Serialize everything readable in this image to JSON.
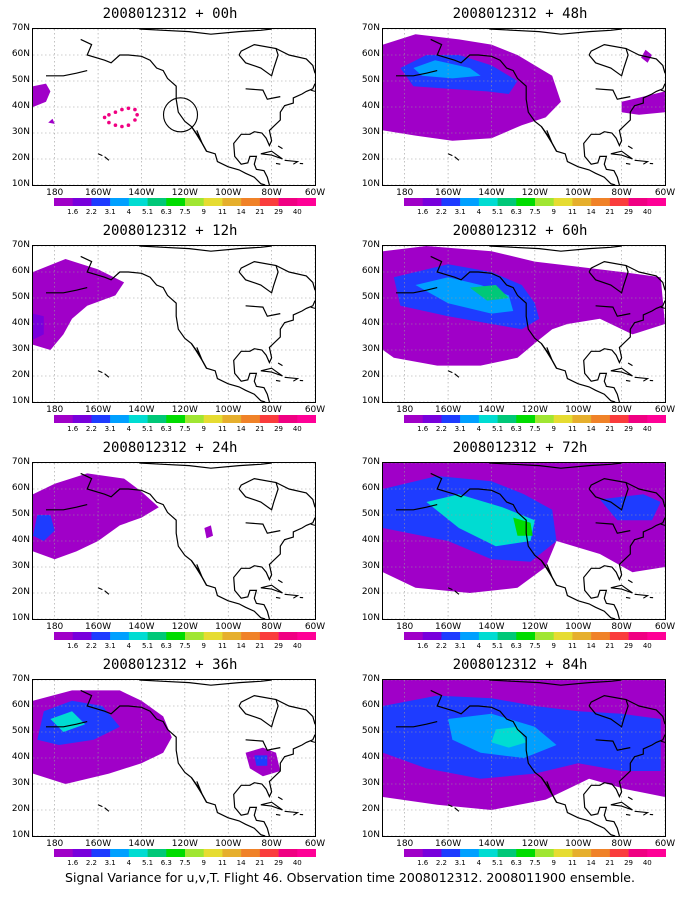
{
  "panels": [
    {
      "title": "2008012312 + 00h",
      "lead": "00h"
    },
    {
      "title": "2008012312 + 48h",
      "lead": "48h"
    },
    {
      "title": "2008012312 + 12h",
      "lead": "12h"
    },
    {
      "title": "2008012312 + 60h",
      "lead": "60h"
    },
    {
      "title": "2008012312 + 24h",
      "lead": "24h"
    },
    {
      "title": "2008012312 + 72h",
      "lead": "72h"
    },
    {
      "title": "2008012312 + 36h",
      "lead": "36h"
    },
    {
      "title": "2008012312 + 84h",
      "lead": "84h"
    }
  ],
  "lat_labels": [
    "70N",
    "60N",
    "50N",
    "40N",
    "30N",
    "20N",
    "10N"
  ],
  "lon_labels": [
    "180",
    "160W",
    "140W",
    "120W",
    "100W",
    "80W",
    "60W"
  ],
  "colorbar": {
    "labels": [
      "1.6",
      "2.2",
      "3.1",
      "4",
      "5.1",
      "6.3",
      "7.5",
      "9",
      "11",
      "14",
      "21",
      "29",
      "40"
    ],
    "colors": [
      "#a000c8",
      "#7800dc",
      "#1e3cff",
      "#00a0ff",
      "#00dcd2",
      "#00c878",
      "#00dc00",
      "#a0e632",
      "#e6dc32",
      "#e6af2d",
      "#f08228",
      "#fa3c3c",
      "#f00082",
      "#ff0096"
    ]
  },
  "caption": "Signal Variance for u,v,T. Flight 46. Observation time 2008012312. 2008011900 ensemble."
}
